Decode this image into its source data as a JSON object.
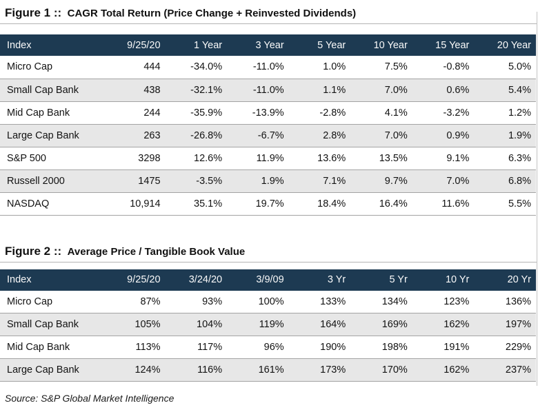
{
  "figure1": {
    "label": "Figure 1 ::",
    "title": "CAGR Total Return (Price Change + Reinvested Dividends)",
    "columns": [
      "Index",
      "9/25/20",
      "1 Year",
      "3 Year",
      "5 Year",
      "10 Year",
      "15 Year",
      "20 Year"
    ],
    "rows": [
      [
        "Micro Cap",
        "444",
        "-34.0%",
        "-11.0%",
        "1.0%",
        "7.5%",
        "-0.8%",
        "5.0%"
      ],
      [
        "Small Cap Bank",
        "438",
        "-32.1%",
        "-11.0%",
        "1.1%",
        "7.0%",
        "0.6%",
        "5.4%"
      ],
      [
        "Mid Cap Bank",
        "244",
        "-35.9%",
        "-13.9%",
        "-2.8%",
        "4.1%",
        "-3.2%",
        "1.2%"
      ],
      [
        "Large Cap Bank",
        "263",
        "-26.8%",
        "-6.7%",
        "2.8%",
        "7.0%",
        "0.9%",
        "1.9%"
      ],
      [
        "S&P 500",
        "3298",
        "12.6%",
        "11.9%",
        "13.6%",
        "13.5%",
        "9.1%",
        "6.3%"
      ],
      [
        "Russell 2000",
        "1475",
        "-3.5%",
        "1.9%",
        "7.1%",
        "9.7%",
        "7.0%",
        "6.8%"
      ],
      [
        "NASDAQ",
        "10,914",
        "35.1%",
        "19.7%",
        "18.4%",
        "16.4%",
        "11.6%",
        "5.5%"
      ]
    ]
  },
  "figure2": {
    "label": "Figure 2 ::",
    "title": "Average Price / Tangible Book Value",
    "columns": [
      "Index",
      "9/25/20",
      "3/24/20",
      "3/9/09",
      "3 Yr",
      "5 Yr",
      "10 Yr",
      "20 Yr"
    ],
    "rows": [
      [
        "Micro Cap",
        "87%",
        "93%",
        "100%",
        "133%",
        "134%",
        "123%",
        "136%"
      ],
      [
        "Small Cap Bank",
        "105%",
        "104%",
        "119%",
        "164%",
        "169%",
        "162%",
        "197%"
      ],
      [
        "Mid Cap Bank",
        "113%",
        "117%",
        "96%",
        "190%",
        "198%",
        "191%",
        "229%"
      ],
      [
        "Large Cap Bank",
        "124%",
        "116%",
        "161%",
        "173%",
        "170%",
        "162%",
        "237%"
      ]
    ]
  },
  "footer": {
    "source_note": "Source: S&P Global Market Intelligence"
  },
  "colors": {
    "header_bg": "#1d3a52",
    "row_alt_bg": "#e7e7e7",
    "divider": "#a3a3a3",
    "header_text": "#fafafa"
  }
}
